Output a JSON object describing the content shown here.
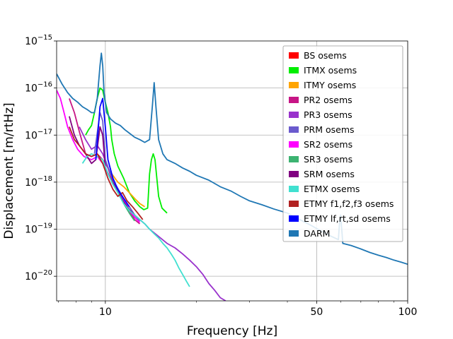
{
  "chart_data": {
    "type": "line",
    "xlabel": "Frequency [Hz]",
    "ylabel": "Displacement [m/rtHz]",
    "xscale": "log",
    "yscale": "log",
    "xlim": [
      6.9,
      100
    ],
    "ylim": [
      3e-21,
      1e-15
    ],
    "grid": true,
    "legend_position": "top-right",
    "x_ticks": [
      {
        "value": 10,
        "label": "10"
      },
      {
        "value": 50,
        "label": "50"
      },
      {
        "value": 100,
        "label": "100"
      }
    ],
    "y_ticks": [
      {
        "value": 1e-15,
        "label": "10",
        "exp": "−15"
      },
      {
        "value": 1e-16,
        "label": "10",
        "exp": "−16"
      },
      {
        "value": 1e-17,
        "label": "10",
        "exp": "−17"
      },
      {
        "value": 1e-18,
        "label": "10",
        "exp": "−18"
      },
      {
        "value": 1e-19,
        "label": "10",
        "exp": "−19"
      },
      {
        "value": 1e-20,
        "label": "10",
        "exp": "−20"
      }
    ],
    "series": [
      {
        "name": "BS osems",
        "color": "#ff0000",
        "points": []
      },
      {
        "name": "ITMX osems",
        "color": "#00ee00",
        "points": [
          [
            8.6,
            1e-17
          ],
          [
            8.8,
            1.3e-17
          ],
          [
            9.0,
            1.6e-17
          ],
          [
            9.2,
            3e-17
          ],
          [
            9.4,
            6e-17
          ],
          [
            9.6,
            1e-16
          ],
          [
            9.8,
            9e-17
          ],
          [
            10.0,
            5e-17
          ],
          [
            10.2,
            3e-17
          ],
          [
            10.4,
            1.5e-17
          ],
          [
            10.5,
            8e-18
          ],
          [
            10.7,
            4e-18
          ],
          [
            11.0,
            2.2e-18
          ],
          [
            11.5,
            1.2e-18
          ],
          [
            12.0,
            6e-19
          ],
          [
            12.5,
            4e-19
          ],
          [
            13.0,
            3e-19
          ],
          [
            13.4,
            2.6e-19
          ],
          [
            13.8,
            2.8e-19
          ],
          [
            14.0,
            1.5e-18
          ],
          [
            14.2,
            3e-18
          ],
          [
            14.4,
            4e-18
          ],
          [
            14.6,
            3e-18
          ],
          [
            14.8,
            1.2e-18
          ],
          [
            15.0,
            5e-19
          ],
          [
            15.4,
            2.8e-19
          ],
          [
            16.0,
            2.2e-19
          ]
        ]
      },
      {
        "name": "ITMY osems",
        "color": "#ffa500",
        "points": [
          [
            10.5,
            1.5e-18
          ],
          [
            11.0,
            1e-18
          ],
          [
            11.5,
            8e-19
          ],
          [
            12.0,
            6e-19
          ],
          [
            12.5,
            4.5e-19
          ],
          [
            13.0,
            3.5e-19
          ],
          [
            13.5,
            3e-19
          ]
        ]
      },
      {
        "name": "PR2 osems",
        "color": "#c71585",
        "points": [
          [
            7.6,
            6e-17
          ],
          [
            7.9,
            3e-17
          ],
          [
            8.2,
            1.2e-17
          ],
          [
            8.6,
            4e-18
          ],
          [
            9.0,
            3.5e-18
          ],
          [
            9.4,
            4e-18
          ],
          [
            9.8,
            3e-18
          ],
          [
            10.2,
            2e-18
          ],
          [
            10.6,
            1e-18
          ],
          [
            11.0,
            6e-19
          ],
          [
            11.5,
            4e-19
          ],
          [
            12.0,
            2.5e-19
          ],
          [
            12.5,
            1.6e-19
          ],
          [
            13.0,
            1.3e-19
          ]
        ]
      },
      {
        "name": "PR3 osems",
        "color": "#9932cc",
        "points": [
          [
            8.2,
            1.5e-17
          ],
          [
            8.6,
            8e-18
          ],
          [
            9.0,
            5e-18
          ],
          [
            9.4,
            6e-18
          ],
          [
            9.8,
            4e-18
          ],
          [
            10.2,
            2e-18
          ],
          [
            10.6,
            1.2e-18
          ],
          [
            11.0,
            7e-19
          ],
          [
            11.5,
            4e-19
          ],
          [
            12.0,
            3e-19
          ],
          [
            12.5,
            2e-19
          ],
          [
            13.0,
            1.6e-19
          ],
          [
            13.5,
            1.3e-19
          ],
          [
            14.0,
            1e-19
          ],
          [
            15.0,
            7e-20
          ],
          [
            16.0,
            5e-20
          ],
          [
            17.0,
            4e-20
          ],
          [
            18.0,
            3e-20
          ],
          [
            19.0,
            2.2e-20
          ],
          [
            20.0,
            1.6e-20
          ],
          [
            21.0,
            1.1e-20
          ],
          [
            22.0,
            7e-21
          ],
          [
            23.0,
            5e-21
          ],
          [
            24.0,
            3.5e-21
          ],
          [
            25.0,
            3e-21
          ]
        ]
      },
      {
        "name": "PRM osems",
        "color": "#6a5acd",
        "points": [
          [
            9.2,
            4e-18
          ],
          [
            9.6,
            3e-17
          ],
          [
            9.8,
            2e-17
          ],
          [
            10.0,
            3e-18
          ],
          [
            10.4,
            1.5e-18
          ],
          [
            10.8,
            9e-19
          ],
          [
            11.2,
            6e-19
          ],
          [
            11.6,
            4e-19
          ],
          [
            12.0,
            3e-19
          ],
          [
            12.5,
            2e-19
          ],
          [
            13.0,
            1.5e-19
          ]
        ]
      },
      {
        "name": "SR2 osems",
        "color": "#ff00ff",
        "points": [
          [
            6.9,
            9e-17
          ],
          [
            7.1,
            6e-17
          ],
          [
            7.3,
            3e-17
          ],
          [
            7.5,
            1.5e-17
          ],
          [
            7.8,
            8e-18
          ],
          [
            8.1,
            5e-18
          ],
          [
            8.5,
            3.5e-18
          ],
          [
            9.0,
            3e-18
          ],
          [
            9.4,
            3.5e-18
          ],
          [
            9.8,
            2.5e-18
          ],
          [
            10.2,
            1.5e-18
          ],
          [
            10.6,
            9e-19
          ],
          [
            11.0,
            6e-19
          ],
          [
            11.5,
            4e-19
          ],
          [
            12.0,
            2.5e-19
          ],
          [
            12.5,
            1.8e-19
          ],
          [
            13.0,
            1.4e-19
          ]
        ]
      },
      {
        "name": "SR3 osems",
        "color": "#3cb371",
        "points": [
          [
            10.5,
            1e-18
          ],
          [
            11.0,
            6e-19
          ],
          [
            11.5,
            3.5e-19
          ],
          [
            12.0,
            2.2e-19
          ],
          [
            12.5,
            1.5e-19
          ]
        ]
      },
      {
        "name": "SRM osems",
        "color": "#800080",
        "points": [
          [
            7.6,
            2.5e-17
          ],
          [
            7.9,
            1e-17
          ],
          [
            8.2,
            6e-18
          ],
          [
            8.6,
            4e-18
          ],
          [
            9.0,
            2.5e-18
          ],
          [
            9.3,
            3e-18
          ],
          [
            9.6,
            1.5e-17
          ],
          [
            9.8,
            1e-17
          ],
          [
            10.0,
            2e-18
          ],
          [
            10.4,
            1.2e-18
          ],
          [
            10.8,
            8e-19
          ],
          [
            11.2,
            5e-19
          ],
          [
            11.6,
            3.5e-19
          ],
          [
            12.0,
            2.6e-19
          ],
          [
            12.5,
            2e-19
          ],
          [
            13.0,
            1.6e-19
          ]
        ]
      },
      {
        "name": "ETMX osems",
        "color": "#40e0d0",
        "points": [
          [
            8.4,
            2.5e-18
          ],
          [
            8.7,
            3.5e-18
          ],
          [
            9.0,
            4e-18
          ],
          [
            9.4,
            3.5e-18
          ],
          [
            9.8,
            3e-18
          ],
          [
            10.2,
            1.5e-18
          ],
          [
            10.6,
            9e-19
          ],
          [
            11.0,
            6e-19
          ],
          [
            11.5,
            3.5e-19
          ],
          [
            12.0,
            2.5e-19
          ],
          [
            12.5,
            2e-19
          ],
          [
            13.0,
            1.6e-19
          ],
          [
            13.5,
            1.3e-19
          ],
          [
            14.0,
            1e-19
          ],
          [
            14.5,
            8e-20
          ],
          [
            15.0,
            6.5e-20
          ],
          [
            15.5,
            5e-20
          ],
          [
            16.0,
            4e-20
          ],
          [
            16.5,
            3e-20
          ],
          [
            17.0,
            2.2e-20
          ],
          [
            17.5,
            1.5e-20
          ],
          [
            18.0,
            1.1e-20
          ],
          [
            18.5,
            8e-21
          ],
          [
            19.0,
            6e-21
          ]
        ]
      },
      {
        "name": "ETMY f1,f2,f3 osems",
        "color": "#b22222",
        "points": [
          [
            7.6,
            1.5e-17
          ],
          [
            7.9,
            8e-18
          ],
          [
            8.2,
            6e-18
          ],
          [
            8.6,
            4e-18
          ],
          [
            9.0,
            3.5e-18
          ],
          [
            9.4,
            4e-18
          ],
          [
            9.8,
            2.5e-18
          ],
          [
            10.2,
            1.2e-18
          ],
          [
            10.6,
            7e-19
          ],
          [
            11.0,
            5e-19
          ],
          [
            11.4,
            6e-19
          ],
          [
            11.8,
            4e-19
          ],
          [
            12.3,
            3e-19
          ],
          [
            12.8,
            2.2e-19
          ],
          [
            13.3,
            1.6e-19
          ]
        ]
      },
      {
        "name": "ETMY lf,rt,sd osems",
        "color": "#0000ff",
        "points": [
          [
            9.3,
            3e-18
          ],
          [
            9.6,
            4e-17
          ],
          [
            9.8,
            6e-17
          ],
          [
            10.0,
            1.5e-17
          ],
          [
            10.2,
            3e-18
          ],
          [
            10.6,
            1.2e-18
          ],
          [
            11.0,
            7e-19
          ],
          [
            11.5,
            4.5e-19
          ],
          [
            12.0,
            3e-19
          ]
        ]
      },
      {
        "name": "DARM",
        "color": "#1f77b4",
        "points": [
          [
            6.9,
            2e-16
          ],
          [
            7.2,
            1.2e-16
          ],
          [
            7.5,
            8e-17
          ],
          [
            7.8,
            6e-17
          ],
          [
            8.1,
            5e-17
          ],
          [
            8.4,
            4e-17
          ],
          [
            8.7,
            3.5e-17
          ],
          [
            9.0,
            3e-17
          ],
          [
            9.2,
            3e-17
          ],
          [
            9.4,
            6e-17
          ],
          [
            9.6,
            3e-16
          ],
          [
            9.7,
            5.5e-16
          ],
          [
            9.8,
            3e-16
          ],
          [
            9.9,
            8e-17
          ],
          [
            10.1,
            3e-17
          ],
          [
            10.4,
            2.2e-17
          ],
          [
            10.8,
            1.8e-17
          ],
          [
            11.2,
            1.6e-17
          ],
          [
            11.6,
            1.3e-17
          ],
          [
            12.0,
            1.1e-17
          ],
          [
            12.5,
            9e-18
          ],
          [
            13.0,
            8e-18
          ],
          [
            13.5,
            7e-18
          ],
          [
            14.0,
            8e-18
          ],
          [
            14.3,
            4e-17
          ],
          [
            14.5,
            1.3e-16
          ],
          [
            14.7,
            4e-17
          ],
          [
            15.0,
            8e-18
          ],
          [
            15.5,
            4e-18
          ],
          [
            16.0,
            3e-18
          ],
          [
            17.0,
            2.5e-18
          ],
          [
            18.0,
            2e-18
          ],
          [
            19.0,
            1.7e-18
          ],
          [
            20.0,
            1.4e-18
          ],
          [
            22.0,
            1.1e-18
          ],
          [
            24.0,
            8e-19
          ],
          [
            26.0,
            6.5e-19
          ],
          [
            28.0,
            5e-19
          ],
          [
            30.0,
            4e-19
          ],
          [
            33.0,
            3.3e-19
          ],
          [
            36.0,
            2.7e-19
          ],
          [
            40.0,
            2.2e-19
          ],
          [
            44.0,
            1.6e-19
          ],
          [
            48.0,
            1.2e-19
          ],
          [
            52.0,
            9e-20
          ],
          [
            56.0,
            7e-20
          ],
          [
            59.0,
            6e-20
          ],
          [
            59.5,
            1.4e-19
          ],
          [
            60.0,
            2e-19
          ],
          [
            60.5,
            1e-19
          ],
          [
            61.0,
            5e-20
          ],
          [
            65.0,
            4.5e-20
          ],
          [
            70.0,
            3.8e-20
          ],
          [
            75.0,
            3.2e-20
          ],
          [
            80.0,
            2.8e-20
          ],
          [
            85.0,
            2.5e-20
          ],
          [
            90.0,
            2.2e-20
          ],
          [
            95.0,
            2e-20
          ],
          [
            100.0,
            1.8e-20
          ]
        ]
      }
    ]
  }
}
